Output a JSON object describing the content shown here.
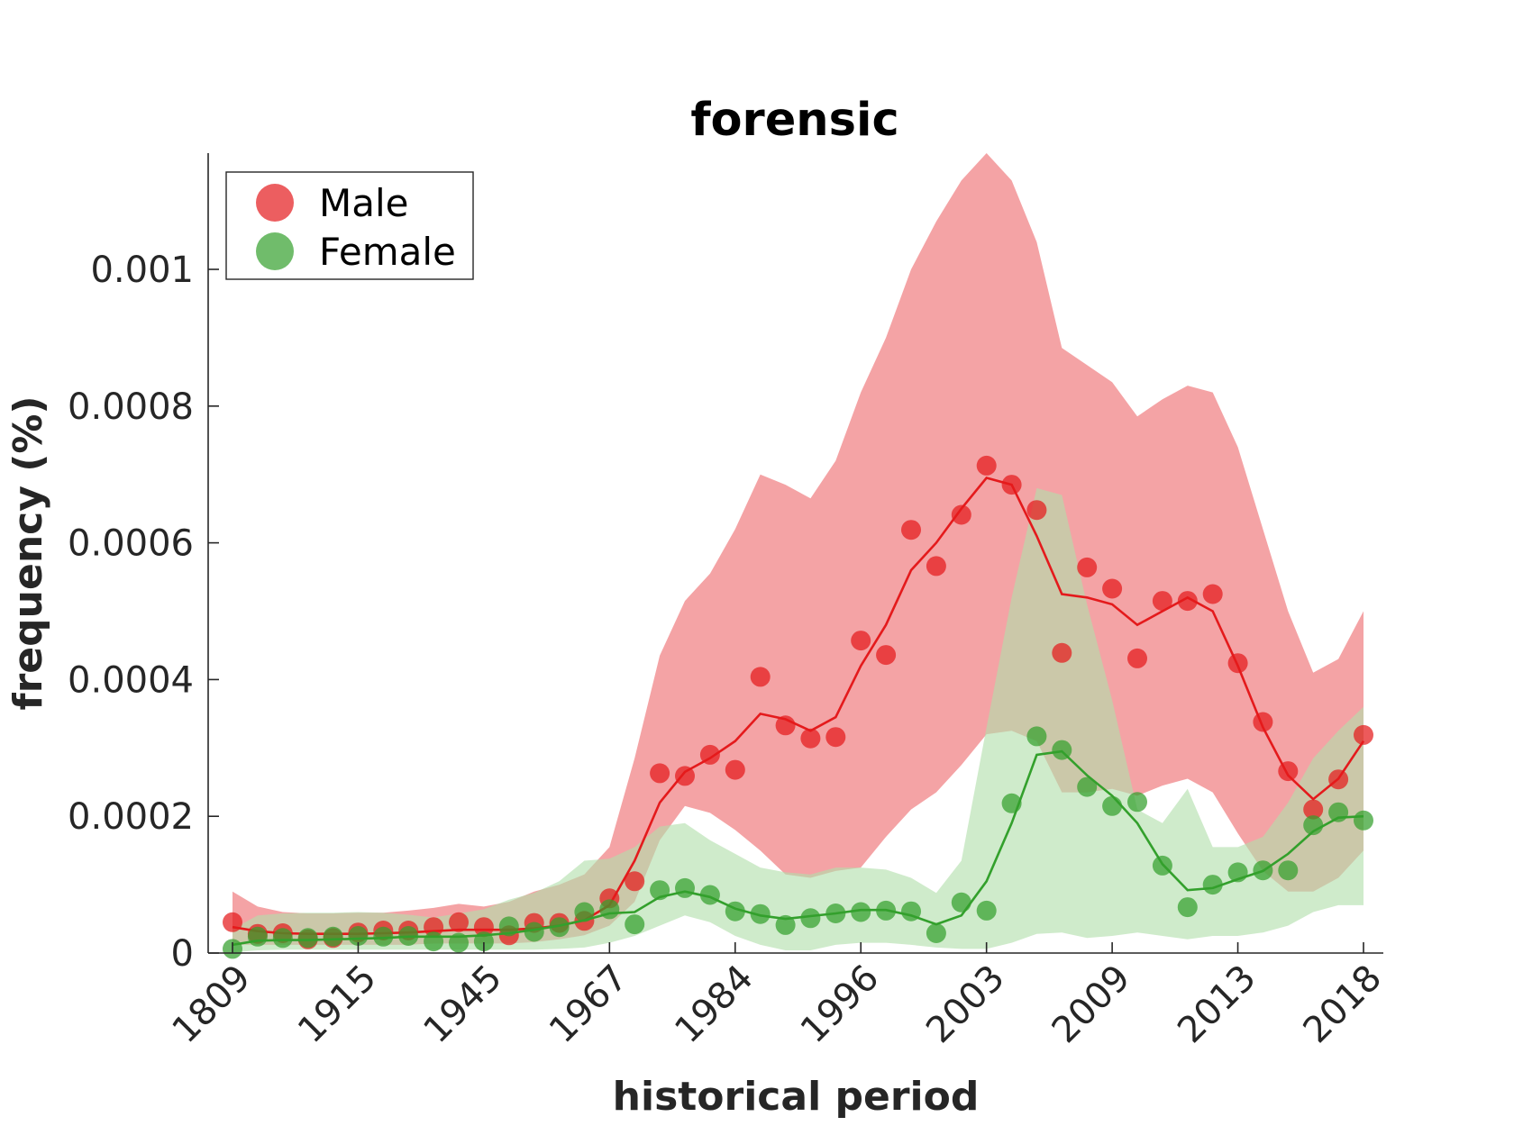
{
  "chart_data": {
    "type": "line",
    "title": "forensic",
    "xlabel": "historical period",
    "ylabel": "frequency (%)",
    "ylim": [
      0,
      0.00117
    ],
    "xtick_labels": [
      "1809",
      "1915",
      "1945",
      "1967",
      "1984",
      "1996",
      "2003",
      "2009",
      "2013",
      "2018"
    ],
    "ytick_values": [
      0,
      0.0002,
      0.0004,
      0.0006,
      0.0008,
      0.001
    ],
    "ytick_labels": [
      "0",
      "0.0002",
      "0.0004",
      "0.0006",
      "0.0008",
      "0.001"
    ],
    "legend_position": "top-left",
    "grid": false,
    "series": [
      {
        "name": "Male",
        "color": "#e41a1c",
        "band_color": "#f4a3a5",
        "points": [
          4.5e-05,
          2.8e-05,
          2.9e-05,
          2e-05,
          2.2e-05,
          3e-05,
          3.3e-05,
          3.3e-05,
          3.8e-05,
          4.5e-05,
          3.8e-05,
          2.6e-05,
          4.4e-05,
          4.4e-05,
          4.7e-05,
          8e-05,
          0.000105,
          0.000263,
          0.000259,
          0.00029,
          0.000268,
          0.000404,
          0.000333,
          0.000314,
          0.000316,
          0.000457,
          0.000436,
          0.000619,
          0.000566,
          0.000641,
          0.000713,
          0.000685,
          0.000648,
          0.000439,
          0.000564,
          0.000533,
          0.000431,
          0.000515,
          0.000515,
          0.000525,
          0.000424,
          0.000338,
          0.000266,
          0.00021,
          0.000254,
          0.000319
        ],
        "line": [
          3.8e-05,
          3.2e-05,
          2.9e-05,
          2.8e-05,
          2.8e-05,
          2.8e-05,
          2.9e-05,
          3e-05,
          3.2e-05,
          3.4e-05,
          3.4e-05,
          3.4e-05,
          3.6e-05,
          4e-05,
          4.8e-05,
          7e-05,
          0.000135,
          0.00022,
          0.000265,
          0.000285,
          0.00031,
          0.00035,
          0.000342,
          0.000325,
          0.000345,
          0.00042,
          0.00048,
          0.00056,
          0.0006,
          0.00065,
          0.000695,
          0.000685,
          0.00061,
          0.000525,
          0.00052,
          0.00051,
          0.00048,
          0.0005,
          0.00052,
          0.0005,
          0.00042,
          0.00033,
          0.00026,
          0.000225,
          0.000255,
          0.00031
        ],
        "upper": [
          9e-05,
          6.8e-05,
          6e-05,
          5.8e-05,
          5.8e-05,
          5.9e-05,
          5.9e-05,
          6.2e-05,
          6.6e-05,
          7.2e-05,
          6.8e-05,
          7.5e-05,
          9e-05,
          0.0001,
          0.000115,
          0.000155,
          0.000285,
          0.000435,
          0.000515,
          0.000555,
          0.00062,
          0.0007,
          0.000685,
          0.000665,
          0.00072,
          0.00082,
          0.0009,
          0.001,
          0.00107,
          0.00113,
          0.00117,
          0.00113,
          0.00104,
          0.000885,
          0.00086,
          0.000835,
          0.000785,
          0.00081,
          0.00083,
          0.00082,
          0.00074,
          0.00062,
          0.0005,
          0.00041,
          0.00043,
          0.0005
        ],
        "lower": [
          1.2e-05,
          1.2e-05,
          1.2e-05,
          1.2e-05,
          1.2e-05,
          1.2e-05,
          1.2e-05,
          1.2e-05,
          1.4e-05,
          1.4e-05,
          1.4e-05,
          1.4e-05,
          1.6e-05,
          2e-05,
          2.6e-05,
          4e-05,
          7.5e-05,
          0.000165,
          0.000215,
          0.000205,
          0.00018,
          0.00015,
          0.000115,
          0.00011,
          0.00012,
          0.000125,
          0.00017,
          0.00021,
          0.000235,
          0.000275,
          0.00032,
          0.000325,
          0.00031,
          0.000235,
          0.000235,
          0.00024,
          0.00023,
          0.000245,
          0.000255,
          0.000235,
          0.000175,
          0.00012,
          9e-05,
          9e-05,
          0.00011,
          0.00015
        ]
      },
      {
        "name": "Female",
        "color": "#33a02c",
        "band_color": "#b2dfab",
        "points": [
          6e-06,
          2.4e-05,
          2.2e-05,
          2.2e-05,
          2.4e-05,
          2.5e-05,
          2.4e-05,
          2.5e-05,
          1.7e-05,
          1.5e-05,
          1.7e-05,
          3.9e-05,
          3.1e-05,
          3.8e-05,
          6e-05,
          6.4e-05,
          4.2e-05,
          9.2e-05,
          9.5e-05,
          8.5e-05,
          6.1e-05,
          5.7e-05,
          4.1e-05,
          5.1e-05,
          5.8e-05,
          6e-05,
          6.2e-05,
          6.1e-05,
          2.9e-05,
          7.4e-05,
          6.2e-05,
          0.000219,
          0.000317,
          0.000297,
          0.000243,
          0.000215,
          0.000221,
          0.000128,
          6.7e-05,
          0.0001,
          0.000118,
          0.000121,
          0.000121,
          0.000187,
          0.000206,
          0.000194
        ],
        "line": [
          1.2e-05,
          1.8e-05,
          1.9e-05,
          1.9e-05,
          2e-05,
          2.1e-05,
          2.2e-05,
          2.4e-05,
          2.4e-05,
          2.4e-05,
          2.6e-05,
          2.9e-05,
          3.4e-05,
          4e-05,
          4.8e-05,
          5.8e-05,
          6e-05,
          8.2e-05,
          9e-05,
          8.2e-05,
          6.5e-05,
          5.5e-05,
          5e-05,
          5.4e-05,
          5.8e-05,
          6.3e-05,
          6.3e-05,
          5.5e-05,
          4.2e-05,
          5.5e-05,
          0.000105,
          0.00019,
          0.00029,
          0.000295,
          0.00026,
          0.00023,
          0.00019,
          0.00013,
          9.2e-05,
          9.5e-05,
          0.000108,
          0.00012,
          0.000145,
          0.000178,
          0.000198,
          0.0002
        ],
        "upper": [
          3.5e-05,
          5.5e-05,
          5.8e-05,
          5.9e-05,
          5.9e-05,
          6e-05,
          5.9e-05,
          5.6e-05,
          5.2e-05,
          5.8e-05,
          6.4e-05,
          7.8e-05,
          8.8e-05,
          0.000105,
          0.000135,
          0.000138,
          0.000155,
          0.000185,
          0.00019,
          0.000165,
          0.000145,
          0.000125,
          0.000118,
          0.000115,
          0.000125,
          0.000125,
          0.000122,
          0.00011,
          8.8e-05,
          0.000135,
          0.00033,
          0.00052,
          0.00068,
          0.00067,
          0.00051,
          0.00037,
          0.00021,
          0.00019,
          0.00024,
          0.000155,
          0.000155,
          0.00017,
          0.00022,
          0.000285,
          0.000325,
          0.00036
        ],
        "lower": [
          1e-06,
          4e-06,
          5e-06,
          5e-06,
          5e-06,
          5e-06,
          5e-06,
          5e-06,
          5e-06,
          5e-06,
          5e-06,
          5e-06,
          5e-06,
          6e-06,
          8e-06,
          1.5e-05,
          2.5e-05,
          4e-05,
          5.5e-05,
          4.5e-05,
          2.5e-05,
          1.2e-05,
          4e-06,
          4e-06,
          1.2e-05,
          1.5e-05,
          1.5e-05,
          1.2e-05,
          8e-06,
          6e-06,
          6e-06,
          1.5e-05,
          2.8e-05,
          3e-05,
          2.2e-05,
          2.5e-05,
          3e-05,
          2.5e-05,
          2e-05,
          2.5e-05,
          2.5e-05,
          3e-05,
          4e-05,
          6e-05,
          7e-05,
          7e-05
        ]
      }
    ]
  }
}
